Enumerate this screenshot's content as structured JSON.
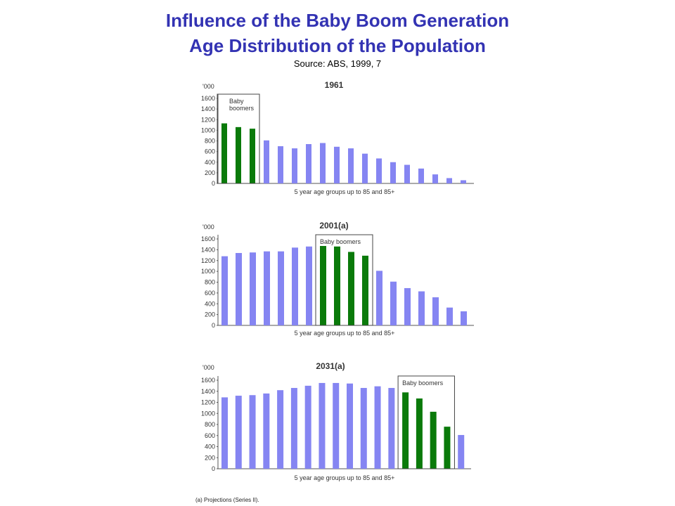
{
  "header": {
    "title_line1": "Influence of the Baby Boom Generation",
    "title_line2": "Age Distribution of the Population",
    "source": "Source:  ABS, 1999, 7"
  },
  "footnote": "(a) Projections (Series II).",
  "colors": {
    "regular": "#8585f2",
    "boomer": "#0a7a0a",
    "title": "#3333b3"
  },
  "chart_data": [
    {
      "type": "bar",
      "title": "1961",
      "ylabel": "'000",
      "xlabel": "5 year age groups up to 85 and 85+",
      "ylim": [
        0,
        1600
      ],
      "yticks": [
        "0",
        "200",
        "400",
        "600",
        "800",
        "1000",
        "1200",
        "1400",
        "1600"
      ],
      "values": [
        1130,
        1060,
        1030,
        810,
        700,
        660,
        740,
        760,
        690,
        660,
        560,
        470,
        400,
        350,
        280,
        170,
        100,
        60
      ],
      "boomer_indices": [
        0,
        1,
        2
      ],
      "annotation": "Baby boomers"
    },
    {
      "type": "bar",
      "title": "2001(a)",
      "ylabel": "'000",
      "xlabel": "5 year age groups up to 85 and 85+",
      "ylim": [
        0,
        1600
      ],
      "yticks": [
        "0",
        "200",
        "400",
        "600",
        "800",
        "1000",
        "1200",
        "1400",
        "1600"
      ],
      "values": [
        1280,
        1340,
        1350,
        1370,
        1370,
        1440,
        1460,
        1470,
        1460,
        1360,
        1290,
        1010,
        810,
        690,
        630,
        520,
        330,
        260
      ],
      "boomer_indices": [
        7,
        8,
        9,
        10
      ],
      "annotation": "Baby boomers"
    },
    {
      "type": "bar",
      "title": "2031(a)",
      "ylabel": "'000",
      "xlabel": "5 year age groups up to 85 and 85+",
      "ylim": [
        0,
        1600
      ],
      "yticks": [
        "0",
        "200",
        "400",
        "600",
        "800",
        "1000",
        "1200",
        "1400",
        "1600"
      ],
      "values": [
        1290,
        1320,
        1330,
        1360,
        1420,
        1460,
        1500,
        1550,
        1550,
        1540,
        1460,
        1490,
        1460,
        1380,
        1270,
        1030,
        760,
        610
      ],
      "boomer_indices": [
        13,
        14,
        15,
        16
      ],
      "annotation": "Baby boomers"
    }
  ]
}
